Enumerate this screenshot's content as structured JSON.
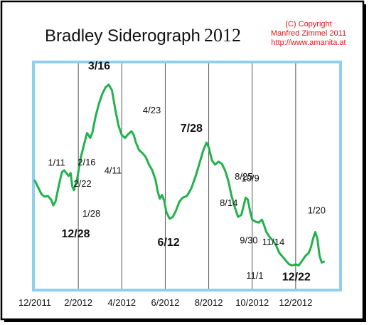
{
  "header": {
    "title_main": "Bradley Siderograph",
    "title_year": "2012",
    "copyright_lines": [
      "(C) Copyright",
      "Manfred Zimmel 2011",
      "http://www.amanita.at"
    ]
  },
  "colors": {
    "line": "#22b24c",
    "copyright": "#e8141b",
    "plot_border": "#8fd0ee",
    "grid": "#555555",
    "frame": "#000000"
  },
  "chart_data": {
    "type": "line",
    "title": "Bradley Siderograph 2012",
    "x_tick_labels": [
      "12/2011",
      "2/2012",
      "4/2012",
      "6/2012",
      "8/2012",
      "10/2012",
      "12/2012"
    ],
    "x_range": [
      0,
      14
    ],
    "y_range": [
      0,
      100
    ],
    "y_axis_labels": false,
    "grid": "vertical",
    "series": [
      {
        "values": [
          [
            0.0,
            47.1
          ],
          [
            0.15,
            43.7
          ],
          [
            0.3,
            40.3
          ],
          [
            0.45,
            38.9
          ],
          [
            0.6,
            39.3
          ],
          [
            0.75,
            37.4
          ],
          [
            0.85,
            34.5
          ],
          [
            0.95,
            36.4
          ],
          [
            1.05,
            41.7
          ],
          [
            1.15,
            47.1
          ],
          [
            1.25,
            51.5
          ],
          [
            1.35,
            52.4
          ],
          [
            1.45,
            51.0
          ],
          [
            1.55,
            49.5
          ],
          [
            1.65,
            51.0
          ],
          [
            1.72,
            44.2
          ],
          [
            1.8,
            42.2
          ],
          [
            1.95,
            48.1
          ],
          [
            2.1,
            58.3
          ],
          [
            2.25,
            65.0
          ],
          [
            2.4,
            71.4
          ],
          [
            2.55,
            68.9
          ],
          [
            2.65,
            71.8
          ],
          [
            2.8,
            80.1
          ],
          [
            2.95,
            86.4
          ],
          [
            3.1,
            91.3
          ],
          [
            3.25,
            94.7
          ],
          [
            3.4,
            96.1
          ],
          [
            3.55,
            93.2
          ],
          [
            3.7,
            83.5
          ],
          [
            3.85,
            75.2
          ],
          [
            4.0,
            70.4
          ],
          [
            4.15,
            68.9
          ],
          [
            4.3,
            70.9
          ],
          [
            4.45,
            72.3
          ],
          [
            4.55,
            70.4
          ],
          [
            4.65,
            66.5
          ],
          [
            4.8,
            62.6
          ],
          [
            4.95,
            61.2
          ],
          [
            5.1,
            59.2
          ],
          [
            5.25,
            55.3
          ],
          [
            5.4,
            52.4
          ],
          [
            5.55,
            47.6
          ],
          [
            5.65,
            41.7
          ],
          [
            5.75,
            37.9
          ],
          [
            5.85,
            39.8
          ],
          [
            5.95,
            36.9
          ],
          [
            6.05,
            31.1
          ],
          [
            6.2,
            27.7
          ],
          [
            6.35,
            28.6
          ],
          [
            6.5,
            32.0
          ],
          [
            6.65,
            36.4
          ],
          [
            6.8,
            38.4
          ],
          [
            7.0,
            39.3
          ],
          [
            7.2,
            43.2
          ],
          [
            7.4,
            49.5
          ],
          [
            7.6,
            56.8
          ],
          [
            7.75,
            62.6
          ],
          [
            7.9,
            66.5
          ],
          [
            8.0,
            64.1
          ],
          [
            8.15,
            57.3
          ],
          [
            8.3,
            55.3
          ],
          [
            8.45,
            56.8
          ],
          [
            8.6,
            55.8
          ],
          [
            8.75,
            52.4
          ],
          [
            8.9,
            47.1
          ],
          [
            9.05,
            39.3
          ],
          [
            9.2,
            33.5
          ],
          [
            9.35,
            28.6
          ],
          [
            9.5,
            29.6
          ],
          [
            9.6,
            34.0
          ],
          [
            9.7,
            38.4
          ],
          [
            9.8,
            37.4
          ],
          [
            9.9,
            31.6
          ],
          [
            10.0,
            27.2
          ],
          [
            10.15,
            26.2
          ],
          [
            10.3,
            25.7
          ],
          [
            10.45,
            27.2
          ],
          [
            10.55,
            24.3
          ],
          [
            10.65,
            20.9
          ],
          [
            10.8,
            18.4
          ],
          [
            10.95,
            16.5
          ],
          [
            11.1,
            14.1
          ],
          [
            11.25,
            10.2
          ],
          [
            11.4,
            8.3
          ],
          [
            11.55,
            6.3
          ],
          [
            11.7,
            4.4
          ],
          [
            11.85,
            3.9
          ],
          [
            12.0,
            4.4
          ],
          [
            12.15,
            3.9
          ],
          [
            12.3,
            6.3
          ],
          [
            12.45,
            8.7
          ],
          [
            12.6,
            10.2
          ],
          [
            12.7,
            13.1
          ],
          [
            12.8,
            17.5
          ],
          [
            12.9,
            20.9
          ],
          [
            13.0,
            17.5
          ],
          [
            13.1,
            8.7
          ],
          [
            13.2,
            5.3
          ],
          [
            13.3,
            5.8
          ]
        ]
      }
    ],
    "annotations": [
      {
        "text": "12/28",
        "x": 0.9,
        "y": 33.5,
        "bold": true
      },
      {
        "text": "1/11",
        "x": 1.1,
        "y": 51.5,
        "bold": false
      },
      {
        "text": "1/28",
        "x": 1.85,
        "y": 40.3,
        "bold": false
      },
      {
        "text": "2/16",
        "x": 2.45,
        "y": 72.3,
        "bold": false
      },
      {
        "text": "2/22",
        "x": 2.85,
        "y": 72.3,
        "bold": false
      },
      {
        "text": "3/16",
        "x": 3.35,
        "y": 96.1,
        "bold": true
      },
      {
        "text": "4/23",
        "x": 4.5,
        "y": 72.3,
        "bold": false
      },
      {
        "text": "4/11",
        "x": 4.15,
        "y": 68.9,
        "bold": false
      },
      {
        "text": "7/28",
        "x": 7.6,
        "y": 66.5,
        "bold": true
      },
      {
        "text": "8/25",
        "x": 8.4,
        "y": 56.8,
        "bold": false
      },
      {
        "text": "8/14",
        "x": 8.3,
        "y": 55.3,
        "bold": false
      },
      {
        "text": "6/12",
        "x": 6.35,
        "y": 27.7,
        "bold": true
      },
      {
        "text": "9/30",
        "x": 9.45,
        "y": 28.6,
        "bold": false
      },
      {
        "text": "10/9",
        "x": 9.75,
        "y": 38.4,
        "bold": false
      },
      {
        "text": "11/14",
        "x": 10.45,
        "y": 27.2,
        "bold": false
      },
      {
        "text": "11/1",
        "x": 10.45,
        "y": 24.3,
        "bold": false
      },
      {
        "text": "12/22",
        "x": 11.9,
        "y": 3.9,
        "bold": true
      },
      {
        "text": "1/20",
        "x": 12.9,
        "y": 20.9,
        "bold": false
      }
    ]
  }
}
